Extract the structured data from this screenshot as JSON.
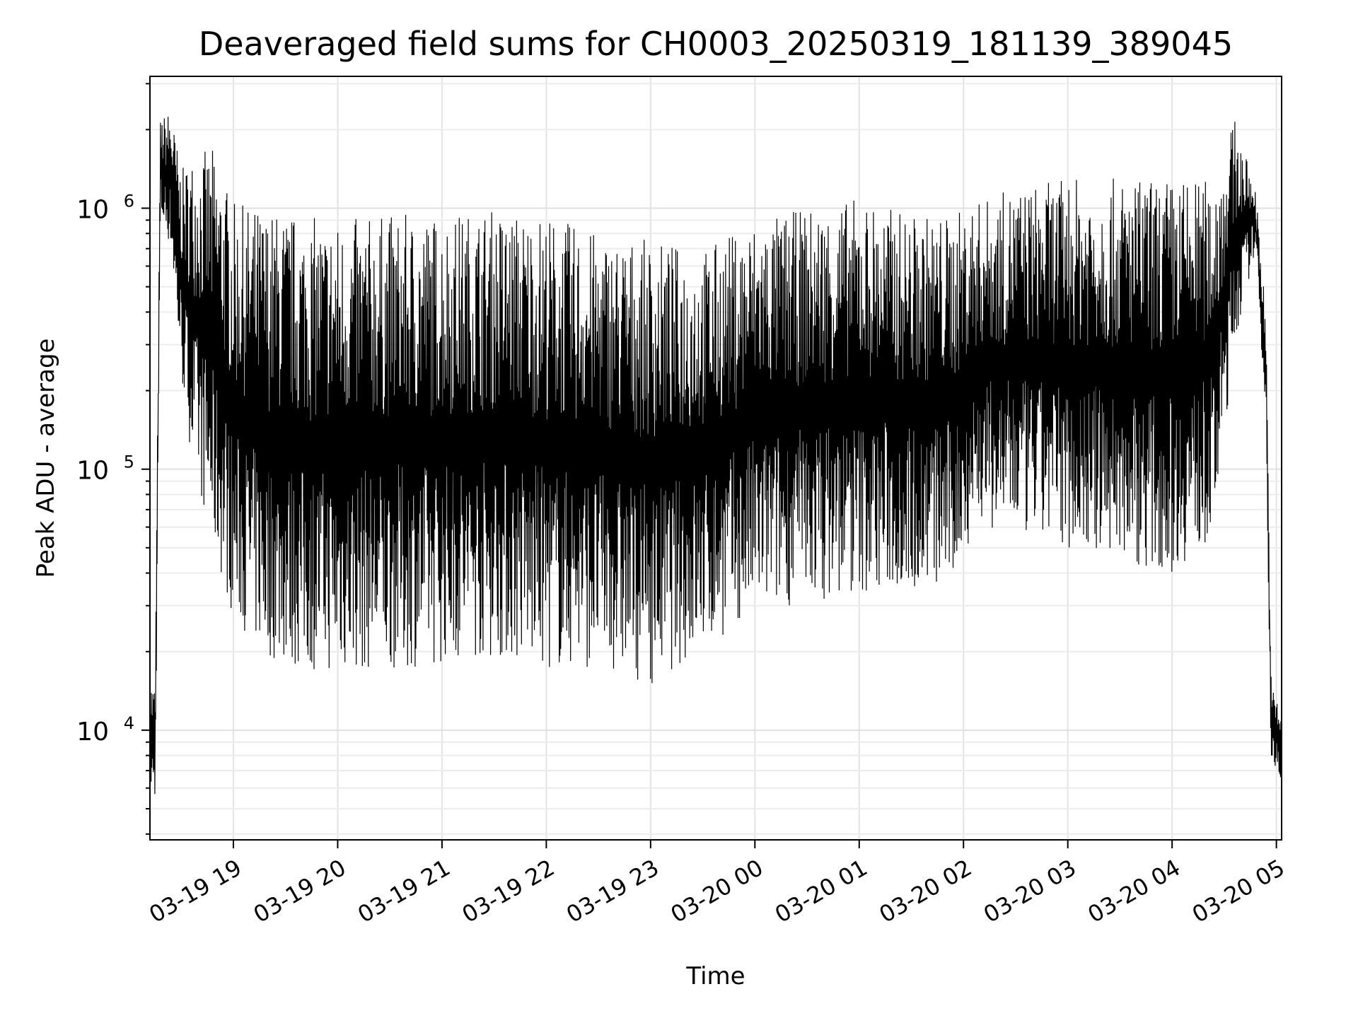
{
  "chart_data": {
    "type": "line",
    "title": "Deaveraged field sums for CH0003_20250319_181139_389045",
    "xlabel": "Time",
    "ylabel": "Peak ADU - average",
    "yscale": "log",
    "ylim": [
      3800,
      3200000
    ],
    "xlim_hours": [
      18.2,
      29.05
    ],
    "grid": true,
    "line_color": "#000000",
    "x_ticks": [
      {
        "hour": 19,
        "label": "03-19 19"
      },
      {
        "hour": 20,
        "label": "03-19 20"
      },
      {
        "hour": 21,
        "label": "03-19 21"
      },
      {
        "hour": 22,
        "label": "03-19 22"
      },
      {
        "hour": 23,
        "label": "03-19 23"
      },
      {
        "hour": 24,
        "label": "03-20 00"
      },
      {
        "hour": 25,
        "label": "03-20 01"
      },
      {
        "hour": 26,
        "label": "03-20 02"
      },
      {
        "hour": 27,
        "label": "03-20 03"
      },
      {
        "hour": 28,
        "label": "03-20 04"
      },
      {
        "hour": 29,
        "label": "03-20 05"
      }
    ],
    "y_ticks": [
      {
        "value": 10000,
        "base": "10",
        "exp": "4"
      },
      {
        "value": 100000,
        "base": "10",
        "exp": "5"
      },
      {
        "value": 1000000,
        "base": "10",
        "exp": "6"
      }
    ],
    "envelope": [
      {
        "hour": 18.2,
        "low": 6000,
        "high": 16000
      },
      {
        "hour": 18.25,
        "low": 5000,
        "high": 15000
      },
      {
        "hour": 18.3,
        "low": 900000,
        "high": 2200000
      },
      {
        "hour": 18.4,
        "low": 700000,
        "high": 2400000
      },
      {
        "hour": 18.5,
        "low": 220000,
        "high": 1400000
      },
      {
        "hour": 18.6,
        "low": 110000,
        "high": 1600000
      },
      {
        "hour": 18.8,
        "low": 50000,
        "high": 1700000
      },
      {
        "hour": 19.0,
        "low": 27000,
        "high": 1050000
      },
      {
        "hour": 19.3,
        "low": 19000,
        "high": 1000000
      },
      {
        "hour": 19.6,
        "low": 17000,
        "high": 950000
      },
      {
        "hour": 20.0,
        "low": 16500,
        "high": 900000
      },
      {
        "hour": 20.5,
        "low": 17000,
        "high": 950000
      },
      {
        "hour": 21.0,
        "low": 18000,
        "high": 950000
      },
      {
        "hour": 21.5,
        "low": 19000,
        "high": 1000000
      },
      {
        "hour": 22.0,
        "low": 17000,
        "high": 950000
      },
      {
        "hour": 22.5,
        "low": 17500,
        "high": 800000
      },
      {
        "hour": 23.0,
        "low": 15000,
        "high": 750000
      },
      {
        "hour": 23.5,
        "low": 20000,
        "high": 700000
      },
      {
        "hour": 24.0,
        "low": 28000,
        "high": 900000
      },
      {
        "hour": 24.5,
        "low": 31000,
        "high": 1000000
      },
      {
        "hour": 25.0,
        "low": 33000,
        "high": 1100000
      },
      {
        "hour": 25.5,
        "low": 34000,
        "high": 950000
      },
      {
        "hour": 25.9,
        "low": 35000,
        "high": 950000
      },
      {
        "hour": 26.1,
        "low": 60000,
        "high": 1050000
      },
      {
        "hour": 26.5,
        "low": 55000,
        "high": 1200000
      },
      {
        "hour": 27.0,
        "low": 50000,
        "high": 1300000
      },
      {
        "hour": 27.5,
        "low": 45000,
        "high": 1300000
      },
      {
        "hour": 28.0,
        "low": 40000,
        "high": 1300000
      },
      {
        "hour": 28.4,
        "low": 55000,
        "high": 1300000
      },
      {
        "hour": 28.6,
        "low": 300000,
        "high": 2200000
      },
      {
        "hour": 28.8,
        "low": 700000,
        "high": 1200000
      },
      {
        "hour": 28.9,
        "low": 150000,
        "high": 400000
      },
      {
        "hour": 28.95,
        "low": 7000,
        "high": 15000
      },
      {
        "hour": 29.05,
        "low": 6500,
        "high": 12000
      }
    ]
  }
}
